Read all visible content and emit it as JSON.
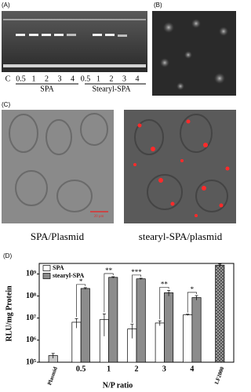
{
  "panels": {
    "A": {
      "label": "(A)",
      "lanes": [
        "C",
        "0.5",
        "1",
        "2",
        "3",
        "4",
        "0.5",
        "1",
        "2",
        "3",
        "4"
      ],
      "groups": [
        "SPA",
        "Stearyl-SPA"
      ]
    },
    "B": {
      "label": "(B)"
    },
    "C": {
      "label": "(C)",
      "captions": [
        "SPA/Plasmid",
        "stearyl-SPA/plasmid"
      ],
      "scale_bar": "20 μm"
    }
  },
  "chart_data": {
    "type": "bar",
    "panel_label": "(D)",
    "log_scale": true,
    "x_label": "N/P ratio",
    "y_label": "RLU/mg Protein",
    "categories": [
      "Plasmid",
      "0.5",
      "1",
      "2",
      "3",
      "4",
      "LF2000"
    ],
    "series": [
      {
        "name": "SPA",
        "color": "#ffffff",
        "values": [
          null,
          6500000,
          8500000,
          3200000,
          6000000,
          14000000,
          null
        ],
        "errors": [
          null,
          3000000,
          7000000,
          2000000,
          1500000,
          1000000,
          null
        ]
      },
      {
        "name": "stearyl-SPA",
        "color": "#8c8c8c",
        "values": [
          null,
          220000000,
          700000000,
          600000000,
          140000000,
          85000000,
          null
        ],
        "errors": [
          null,
          20000000,
          50000000,
          40000000,
          40000000,
          20000000,
          null
        ]
      }
    ],
    "control_values": [
      200000,
      null,
      null,
      null,
      null,
      null,
      2500000000
    ],
    "control_errors": [
      50000,
      null,
      null,
      null,
      null,
      null,
      300000000
    ],
    "control_colors": [
      "#c8c8c8",
      null,
      null,
      null,
      null,
      null,
      "#8c8c8c"
    ],
    "annotations": [
      null,
      "*",
      "**",
      "***",
      "**",
      "*",
      null
    ],
    "ylim": [
      100000,
      3000000000
    ],
    "yticks": [
      {
        "value": 100000,
        "label": "10⁵"
      },
      {
        "value": 1000000,
        "label": "10⁶"
      },
      {
        "value": 10000000,
        "label": "10⁷"
      },
      {
        "value": 100000000,
        "label": "10⁸"
      },
      {
        "value": 1000000000,
        "label": "10⁹"
      }
    ],
    "legend": "top-left"
  }
}
